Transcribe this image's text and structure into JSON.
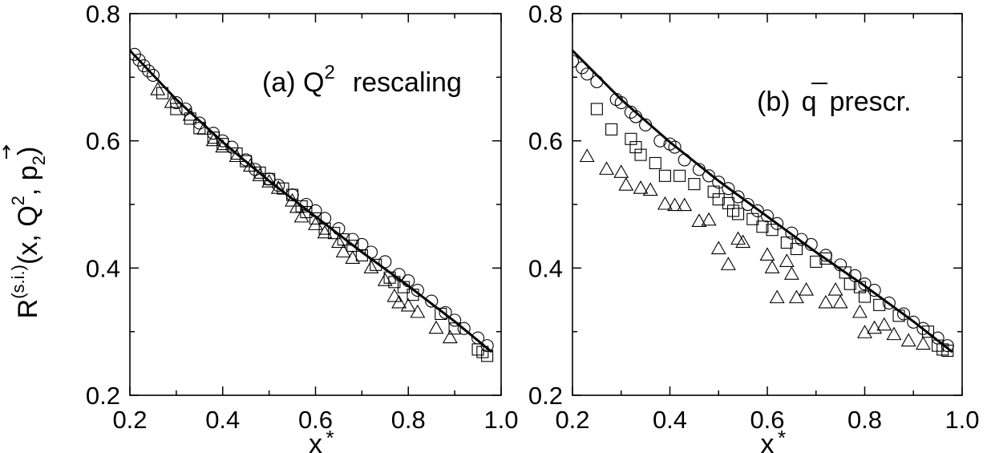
{
  "figure": {
    "ylabel_main": "R",
    "ylabel_sup": "(s.i.)",
    "ylabel_rest": "(x, Q",
    "ylabel_q2sup": "2",
    "ylabel_p": "p",
    "ylabel_psub": "2",
    "ylabel_close": ")",
    "ylabel_comma": ","
  },
  "chart_data": [
    {
      "type": "scatter",
      "panel": "a",
      "annotation": {
        "prefix": "(a) Q",
        "sup": "2",
        "suffix": "rescaling"
      },
      "xlabel": "x",
      "xlabel_star": "*",
      "xlim": [
        0.2,
        1.0
      ],
      "ylim": [
        0.2,
        0.8
      ],
      "xticks": [
        "0.2",
        "0.4",
        "0.6",
        "0.8",
        "1.0"
      ],
      "yticks": [
        "0.2",
        "0.4",
        "0.6",
        "0.8"
      ],
      "grid": false,
      "legend": "none",
      "curve": {
        "x": [
          0.2,
          0.3,
          0.4,
          0.5,
          0.6,
          0.7,
          0.8,
          0.9,
          0.98
        ],
        "y": [
          0.742,
          0.665,
          0.598,
          0.537,
          0.481,
          0.425,
          0.372,
          0.316,
          0.268
        ]
      },
      "series": [
        {
          "marker": "circle",
          "points": [
            [
              0.21,
              0.736
            ],
            [
              0.22,
              0.727
            ],
            [
              0.23,
              0.718
            ],
            [
              0.24,
              0.71
            ],
            [
              0.25,
              0.703
            ],
            [
              0.3,
              0.66
            ],
            [
              0.32,
              0.65
            ],
            [
              0.35,
              0.628
            ],
            [
              0.38,
              0.612
            ],
            [
              0.4,
              0.6
            ],
            [
              0.42,
              0.59
            ],
            [
              0.45,
              0.57
            ],
            [
              0.47,
              0.555
            ],
            [
              0.5,
              0.54
            ],
            [
              0.52,
              0.53
            ],
            [
              0.55,
              0.515
            ],
            [
              0.58,
              0.5
            ],
            [
              0.6,
              0.49
            ],
            [
              0.62,
              0.478
            ],
            [
              0.65,
              0.462
            ],
            [
              0.68,
              0.445
            ],
            [
              0.7,
              0.437
            ],
            [
              0.72,
              0.425
            ],
            [
              0.75,
              0.41
            ],
            [
              0.78,
              0.39
            ],
            [
              0.8,
              0.38
            ],
            [
              0.82,
              0.365
            ],
            [
              0.85,
              0.348
            ],
            [
              0.88,
              0.33
            ],
            [
              0.9,
              0.318
            ],
            [
              0.92,
              0.305
            ],
            [
              0.95,
              0.29
            ],
            [
              0.97,
              0.278
            ]
          ]
        },
        {
          "marker": "square",
          "points": [
            [
              0.27,
              0.675
            ],
            [
              0.3,
              0.65
            ],
            [
              0.33,
              0.635
            ],
            [
              0.35,
              0.62
            ],
            [
              0.38,
              0.605
            ],
            [
              0.4,
              0.595
            ],
            [
              0.43,
              0.58
            ],
            [
              0.45,
              0.568
            ],
            [
              0.48,
              0.55
            ],
            [
              0.5,
              0.54
            ],
            [
              0.53,
              0.525
            ],
            [
              0.55,
              0.515
            ],
            [
              0.57,
              0.497
            ],
            [
              0.58,
              0.488
            ],
            [
              0.6,
              0.478
            ],
            [
              0.62,
              0.462
            ],
            [
              0.64,
              0.455
            ],
            [
              0.66,
              0.445
            ],
            [
              0.68,
              0.435
            ],
            [
              0.7,
              0.42
            ],
            [
              0.73,
              0.405
            ],
            [
              0.76,
              0.385
            ],
            [
              0.77,
              0.378
            ],
            [
              0.79,
              0.37
            ],
            [
              0.81,
              0.358
            ],
            [
              0.87,
              0.328
            ],
            [
              0.9,
              0.305
            ],
            [
              0.95,
              0.272
            ],
            [
              0.96,
              0.268
            ],
            [
              0.97,
              0.262
            ]
          ]
        },
        {
          "marker": "triangle",
          "points": [
            [
              0.26,
              0.68
            ],
            [
              0.29,
              0.66
            ],
            [
              0.33,
              0.64
            ],
            [
              0.36,
              0.618
            ],
            [
              0.38,
              0.6
            ],
            [
              0.4,
              0.59
            ],
            [
              0.43,
              0.575
            ],
            [
              0.46,
              0.56
            ],
            [
              0.48,
              0.545
            ],
            [
              0.5,
              0.535
            ],
            [
              0.52,
              0.525
            ],
            [
              0.55,
              0.505
            ],
            [
              0.56,
              0.495
            ],
            [
              0.57,
              0.48
            ],
            [
              0.6,
              0.468
            ],
            [
              0.62,
              0.455
            ],
            [
              0.65,
              0.44
            ],
            [
              0.66,
              0.425
            ],
            [
              0.68,
              0.415
            ],
            [
              0.72,
              0.4
            ],
            [
              0.75,
              0.38
            ],
            [
              0.77,
              0.355
            ],
            [
              0.78,
              0.345
            ],
            [
              0.8,
              0.34
            ],
            [
              0.82,
              0.33
            ],
            [
              0.86,
              0.305
            ],
            [
              0.89,
              0.29
            ]
          ]
        }
      ]
    },
    {
      "type": "scatter",
      "panel": "b",
      "annotation": {
        "prefix": "(b)",
        "qbar": "q",
        "suffix": "prescr."
      },
      "xlabel": "x",
      "xlabel_star": "*",
      "xlim": [
        0.2,
        1.0
      ],
      "ylim": [
        0.2,
        0.8
      ],
      "xticks": [
        "0.2",
        "0.4",
        "0.6",
        "0.8",
        "1.0"
      ],
      "yticks": [
        "0.2",
        "0.4",
        "0.6",
        "0.8"
      ],
      "grid": false,
      "legend": "none",
      "curve": {
        "x": [
          0.2,
          0.3,
          0.4,
          0.5,
          0.6,
          0.7,
          0.8,
          0.9,
          0.98
        ],
        "y": [
          0.742,
          0.665,
          0.598,
          0.537,
          0.481,
          0.425,
          0.372,
          0.316,
          0.268
        ]
      },
      "series": [
        {
          "marker": "circle",
          "points": [
            [
              0.2,
              0.725
            ],
            [
              0.22,
              0.715
            ],
            [
              0.23,
              0.705
            ],
            [
              0.25,
              0.693
            ],
            [
              0.29,
              0.665
            ],
            [
              0.3,
              0.66
            ],
            [
              0.32,
              0.645
            ],
            [
              0.33,
              0.638
            ],
            [
              0.35,
              0.625
            ],
            [
              0.38,
              0.6
            ],
            [
              0.4,
              0.595
            ],
            [
              0.41,
              0.59
            ],
            [
              0.43,
              0.57
            ],
            [
              0.46,
              0.555
            ],
            [
              0.48,
              0.545
            ],
            [
              0.5,
              0.535
            ],
            [
              0.52,
              0.525
            ],
            [
              0.54,
              0.512
            ],
            [
              0.56,
              0.5
            ],
            [
              0.58,
              0.49
            ],
            [
              0.6,
              0.482
            ],
            [
              0.62,
              0.47
            ],
            [
              0.65,
              0.455
            ],
            [
              0.67,
              0.445
            ],
            [
              0.69,
              0.437
            ],
            [
              0.72,
              0.42
            ],
            [
              0.75,
              0.405
            ],
            [
              0.78,
              0.388
            ],
            [
              0.8,
              0.375
            ],
            [
              0.82,
              0.365
            ],
            [
              0.85,
              0.345
            ],
            [
              0.88,
              0.328
            ],
            [
              0.9,
              0.315
            ],
            [
              0.92,
              0.305
            ],
            [
              0.95,
              0.29
            ],
            [
              0.97,
              0.278
            ]
          ]
        },
        {
          "marker": "square",
          "points": [
            [
              0.25,
              0.65
            ],
            [
              0.28,
              0.618
            ],
            [
              0.32,
              0.603
            ],
            [
              0.33,
              0.59
            ],
            [
              0.34,
              0.578
            ],
            [
              0.37,
              0.565
            ],
            [
              0.39,
              0.545
            ],
            [
              0.42,
              0.545
            ],
            [
              0.45,
              0.532
            ],
            [
              0.49,
              0.52
            ],
            [
              0.5,
              0.508
            ],
            [
              0.52,
              0.502
            ],
            [
              0.53,
              0.49
            ],
            [
              0.54,
              0.485
            ],
            [
              0.57,
              0.477
            ],
            [
              0.59,
              0.465
            ],
            [
              0.61,
              0.46
            ],
            [
              0.64,
              0.44
            ],
            [
              0.66,
              0.43
            ],
            [
              0.7,
              0.41
            ],
            [
              0.72,
              0.415
            ],
            [
              0.76,
              0.393
            ],
            [
              0.77,
              0.375
            ],
            [
              0.79,
              0.37
            ],
            [
              0.8,
              0.355
            ],
            [
              0.83,
              0.342
            ],
            [
              0.87,
              0.325
            ],
            [
              0.93,
              0.3
            ],
            [
              0.95,
              0.278
            ],
            [
              0.96,
              0.272
            ],
            [
              0.97,
              0.27
            ]
          ]
        },
        {
          "marker": "triangle",
          "points": [
            [
              0.23,
              0.575
            ],
            [
              0.27,
              0.555
            ],
            [
              0.3,
              0.55
            ],
            [
              0.31,
              0.53
            ],
            [
              0.34,
              0.525
            ],
            [
              0.36,
              0.522
            ],
            [
              0.39,
              0.5
            ],
            [
              0.41,
              0.498
            ],
            [
              0.43,
              0.498
            ],
            [
              0.46,
              0.473
            ],
            [
              0.48,
              0.475
            ],
            [
              0.5,
              0.43
            ],
            [
              0.52,
              0.405
            ],
            [
              0.54,
              0.445
            ],
            [
              0.55,
              0.44
            ],
            [
              0.6,
              0.42
            ],
            [
              0.61,
              0.4
            ],
            [
              0.62,
              0.353
            ],
            [
              0.64,
              0.41
            ],
            [
              0.65,
              0.39
            ],
            [
              0.66,
              0.353
            ],
            [
              0.68,
              0.365
            ],
            [
              0.72,
              0.345
            ],
            [
              0.74,
              0.365
            ],
            [
              0.75,
              0.345
            ],
            [
              0.79,
              0.33
            ],
            [
              0.8,
              0.298
            ],
            [
              0.82,
              0.305
            ],
            [
              0.84,
              0.31
            ],
            [
              0.86,
              0.295
            ],
            [
              0.89,
              0.285
            ],
            [
              0.92,
              0.28
            ]
          ]
        }
      ]
    }
  ]
}
